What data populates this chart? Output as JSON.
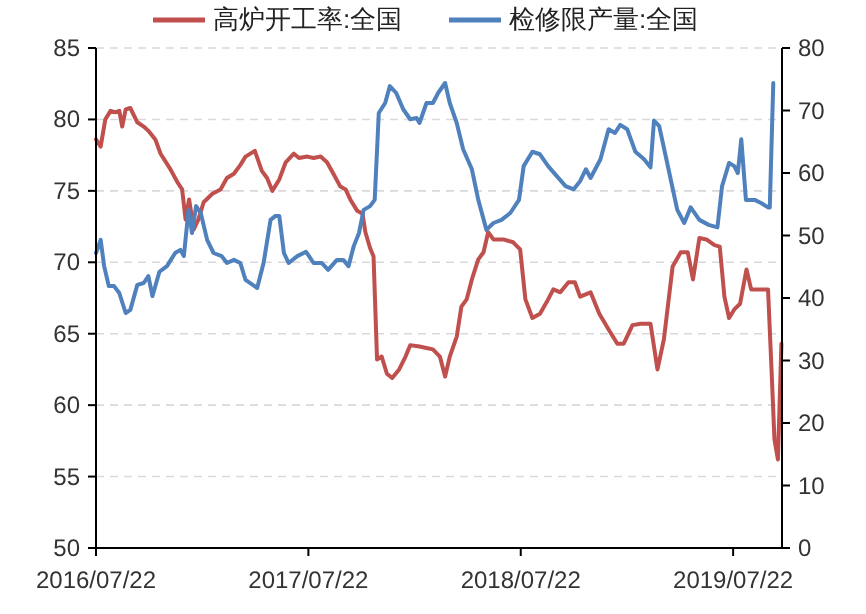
{
  "chart_data": {
    "type": "line",
    "legend": "top",
    "grid": "y",
    "xlim": [
      "2016-07-22",
      "2019-10-14"
    ],
    "xticks": [
      {
        "value": "2016-07-22",
        "label": "2016/07/22"
      },
      {
        "value": "2017-07-22",
        "label": "2017/07/22"
      },
      {
        "value": "2018-07-22",
        "label": "2018/07/22"
      },
      {
        "value": "2019-07-22",
        "label": "2019/07/22"
      }
    ],
    "ylim": [
      50,
      85
    ],
    "yticks": [
      50,
      55,
      60,
      65,
      70,
      75,
      80,
      85
    ],
    "y2lim": [
      0,
      80
    ],
    "y2ticks": [
      0,
      10,
      20,
      30,
      40,
      50,
      60,
      70,
      80
    ],
    "series": [
      {
        "name": "高炉开工率:全国",
        "color": "#c0504d",
        "x": [
          "2016-07-22",
          "2016-07-30",
          "2016-08-07",
          "2016-08-16",
          "2016-08-24",
          "2016-08-31",
          "2016-09-05",
          "2016-09-11",
          "2016-09-19",
          "2016-10-01",
          "2016-10-12",
          "2016-10-20",
          "2016-11-01",
          "2016-11-10",
          "2016-11-27",
          "2016-12-09",
          "2016-12-17",
          "2016-12-23",
          "2016-12-29",
          "2017-01-06",
          "2017-01-14",
          "2017-01-23",
          "2017-02-07",
          "2017-02-21",
          "2017-03-04",
          "2017-03-16",
          "2017-03-27",
          "2017-04-05",
          "2017-04-21",
          "2017-05-03",
          "2017-05-12",
          "2017-05-21",
          "2017-06-02",
          "2017-06-13",
          "2017-06-27",
          "2017-07-06",
          "2017-07-20",
          "2017-07-31",
          "2017-08-12",
          "2017-08-23",
          "2017-09-03",
          "2017-09-15",
          "2017-09-24",
          "2017-10-02",
          "2017-10-14",
          "2017-10-23",
          "2017-10-28",
          "2017-11-05",
          "2017-11-11",
          "2017-11-17",
          "2017-11-25",
          "2017-12-04",
          "2017-12-13",
          "2017-12-25",
          "2018-01-05",
          "2018-01-13",
          "2018-01-29",
          "2018-02-10",
          "2018-02-21",
          "2018-03-05",
          "2018-03-14",
          "2018-03-22",
          "2018-04-03",
          "2018-04-11",
          "2018-04-20",
          "2018-04-29",
          "2018-05-10",
          "2018-05-19",
          "2018-05-27",
          "2018-06-05",
          "2018-06-22",
          "2018-07-09",
          "2018-07-21",
          "2018-07-30",
          "2018-08-11",
          "2018-08-24",
          "2018-09-07",
          "2018-09-16",
          "2018-09-28",
          "2018-10-12",
          "2018-10-23",
          "2018-11-01",
          "2018-11-19",
          "2018-12-04",
          "2018-12-20",
          "2019-01-04",
          "2019-01-15",
          "2019-01-30",
          "2019-02-13",
          "2019-03-02",
          "2019-03-14",
          "2019-03-25",
          "2019-04-09",
          "2019-04-23",
          "2019-05-05",
          "2019-05-14",
          "2019-05-25",
          "2019-06-06",
          "2019-06-20",
          "2019-06-29",
          "2019-07-07",
          "2019-07-15",
          "2019-07-24",
          "2019-08-03",
          "2019-08-14",
          "2019-08-22",
          "2019-09-06",
          "2019-09-20",
          "2019-09-26",
          "2019-10-01",
          "2019-10-07",
          "2019-10-13"
        ],
        "values": [
          78.6,
          78.1,
          80.0,
          80.6,
          80.5,
          80.6,
          79.5,
          80.7,
          80.8,
          79.8,
          79.5,
          79.2,
          78.6,
          77.6,
          76.5,
          75.6,
          75.1,
          73.0,
          74.4,
          72.3,
          73.0,
          74.2,
          74.8,
          75.1,
          75.9,
          76.2,
          76.8,
          77.4,
          77.8,
          76.4,
          75.9,
          75.0,
          75.8,
          77.0,
          77.6,
          77.3,
          77.4,
          77.3,
          77.4,
          77.0,
          76.2,
          75.3,
          75.1,
          74.4,
          73.6,
          73.4,
          72.1,
          71.0,
          70.4,
          63.2,
          63.4,
          62.2,
          61.9,
          62.5,
          63.4,
          64.2,
          64.1,
          64.0,
          63.9,
          63.4,
          62.0,
          63.4,
          64.8,
          66.9,
          67.4,
          68.8,
          70.2,
          70.7,
          72.1,
          71.6,
          71.6,
          71.4,
          70.9,
          67.4,
          66.1,
          66.4,
          67.4,
          68.1,
          67.9,
          68.6,
          68.6,
          67.6,
          67.9,
          66.4,
          65.3,
          64.3,
          64.3,
          65.6,
          65.7,
          65.7,
          62.5,
          64.6,
          69.7,
          70.7,
          70.7,
          68.8,
          71.7,
          71.6,
          71.2,
          71.1,
          67.6,
          66.1,
          66.7,
          67.1,
          69.5,
          68.1,
          68.1,
          68.1,
          62.5,
          57.6,
          56.2,
          64.3
        ]
      },
      {
        "name": "检修限产量:全国",
        "color": "#4f81bd",
        "axis": "y2",
        "x": [
          "2016-07-22",
          "2016-07-30",
          "2016-08-05",
          "2016-08-13",
          "2016-08-22",
          "2016-08-31",
          "2016-09-11",
          "2016-09-19",
          "2016-10-01",
          "2016-10-12",
          "2016-10-20",
          "2016-10-27",
          "2016-11-08",
          "2016-11-21",
          "2016-12-05",
          "2016-12-14",
          "2016-12-20",
          "2016-12-28",
          "2017-01-03",
          "2017-01-10",
          "2017-01-18",
          "2017-01-29",
          "2017-02-09",
          "2017-02-23",
          "2017-03-04",
          "2017-03-16",
          "2017-03-27",
          "2017-04-05",
          "2017-04-25",
          "2017-05-06",
          "2017-05-18",
          "2017-05-26",
          "2017-06-02",
          "2017-06-10",
          "2017-06-18",
          "2017-07-03",
          "2017-07-18",
          "2017-07-31",
          "2017-08-14",
          "2017-08-25",
          "2017-09-09",
          "2017-09-20",
          "2017-09-29",
          "2017-10-08",
          "2017-10-17",
          "2017-10-25",
          "2017-11-05",
          "2017-11-13",
          "2017-11-20",
          "2017-12-01",
          "2017-12-09",
          "2017-12-20",
          "2018-01-01",
          "2018-01-13",
          "2018-01-24",
          "2018-01-29",
          "2018-02-10",
          "2018-02-21",
          "2018-03-02",
          "2018-03-14",
          "2018-03-22",
          "2018-04-03",
          "2018-04-14",
          "2018-04-29",
          "2018-05-10",
          "2018-05-24",
          "2018-06-05",
          "2018-06-19",
          "2018-07-04",
          "2018-07-19",
          "2018-07-27",
          "2018-08-11",
          "2018-08-24",
          "2018-09-07",
          "2018-09-22",
          "2018-10-07",
          "2018-10-21",
          "2018-11-01",
          "2018-11-11",
          "2018-11-19",
          "2018-12-06",
          "2018-12-20",
          "2018-12-31",
          "2019-01-09",
          "2019-01-21",
          "2019-02-04",
          "2019-02-19",
          "2019-03-02",
          "2019-03-08",
          "2019-03-17",
          "2019-04-02",
          "2019-04-17",
          "2019-04-29",
          "2019-05-10",
          "2019-05-25",
          "2019-06-10",
          "2019-06-25",
          "2019-07-03",
          "2019-07-15",
          "2019-07-24",
          "2019-07-30",
          "2019-08-05",
          "2019-08-13",
          "2019-08-28",
          "2019-09-08",
          "2019-09-20",
          "2019-09-23",
          "2019-09-29"
        ],
        "values": [
          47.2,
          49.3,
          45.1,
          41.9,
          41.9,
          40.8,
          37.6,
          38.1,
          42.1,
          42.4,
          43.5,
          40.3,
          44.2,
          45.1,
          47.2,
          47.7,
          46.7,
          54.1,
          50.4,
          54.7,
          53.6,
          49.3,
          47.2,
          46.7,
          45.6,
          46.1,
          45.6,
          42.9,
          41.6,
          45.6,
          52.5,
          53.1,
          53.1,
          47.2,
          45.6,
          46.7,
          47.4,
          45.6,
          45.6,
          44.5,
          46.1,
          46.1,
          45.1,
          48.3,
          50.4,
          54.1,
          54.7,
          55.7,
          69.6,
          71.2,
          73.9,
          72.8,
          70.2,
          68.6,
          68.8,
          68.0,
          71.2,
          71.2,
          72.8,
          74.4,
          71.2,
          68.0,
          63.8,
          60.6,
          55.7,
          50.9,
          52.0,
          52.5,
          53.6,
          55.7,
          61.1,
          63.4,
          63.0,
          61.1,
          59.5,
          57.9,
          57.4,
          58.7,
          60.6,
          59.2,
          62.2,
          67.0,
          66.4,
          67.7,
          67.0,
          63.4,
          62.2,
          60.9,
          68.4,
          67.5,
          60.6,
          54.1,
          52.0,
          54.5,
          52.5,
          51.7,
          51.3,
          57.9,
          61.6,
          61.1,
          60.0,
          65.4,
          55.7,
          55.7,
          55.2,
          54.5,
          54.5,
          74.4
        ]
      }
    ]
  }
}
